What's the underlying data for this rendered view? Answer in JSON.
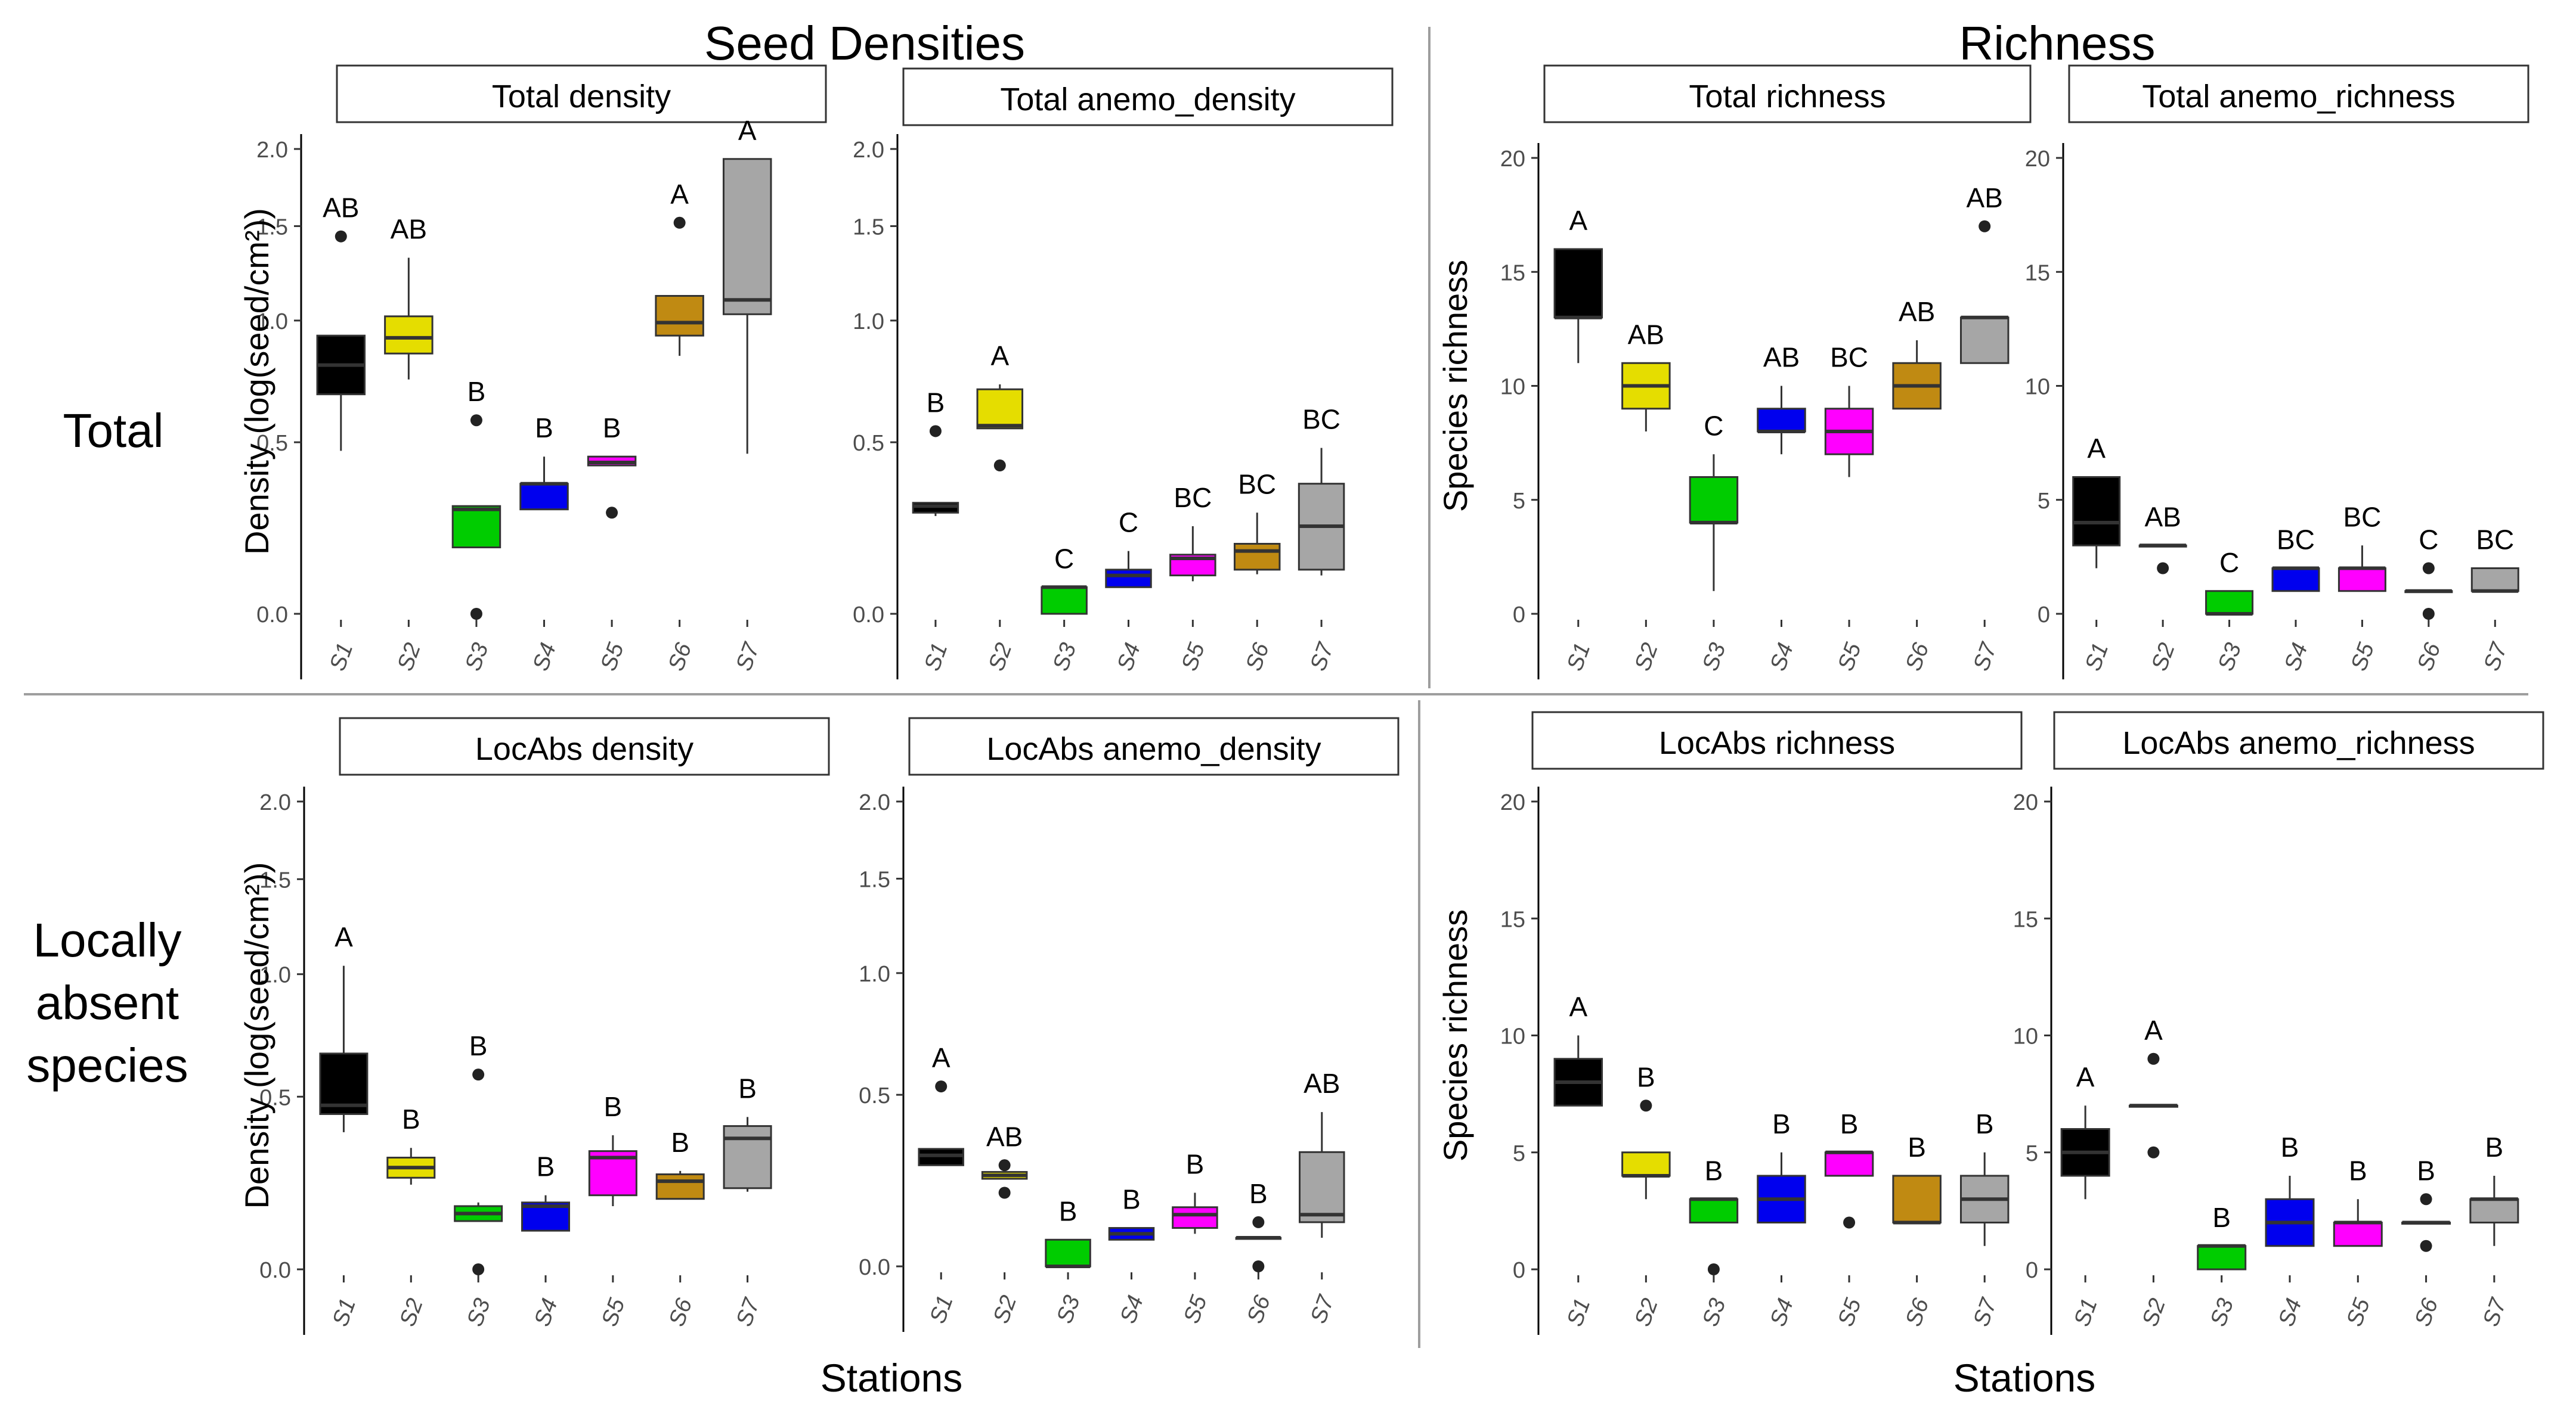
{
  "headers": {
    "col_left": "Seed Densities",
    "col_right": "Richness",
    "row_top": "Total",
    "row_bottom_l1": "Locally",
    "row_bottom_l2": "absent",
    "row_bottom_l3": "species",
    "x_label_left": "Stations",
    "x_label_right": "Stations"
  },
  "colors": {
    "S1": "#000000",
    "S2": "#e5dd00",
    "S3": "#00cc00",
    "S4": "#0000ee",
    "S5": "#ff00ff",
    "S6": "#c08a12",
    "S7": "#a6a6a6"
  },
  "chart_data": [
    {
      "type": "box",
      "title": "Total density",
      "ylabel": "Density (log(seed/cm²))",
      "xlabel": "Stations",
      "scale": "log1p",
      "yticks": [
        "0.0",
        "0.5",
        "1.0",
        "1.5",
        "2.0"
      ],
      "categories": [
        "S1",
        "S2",
        "S3",
        "S4",
        "S5",
        "S6",
        "S7"
      ],
      "boxes": [
        {
          "station": "S1",
          "min": 0.47,
          "q1": 0.68,
          "median": 0.8,
          "q3": 0.93,
          "max": 0.93,
          "outliers": [
            1.44
          ],
          "letter": "AB"
        },
        {
          "station": "S2",
          "min": 0.74,
          "q1": 0.85,
          "median": 0.92,
          "q3": 1.02,
          "max": 1.32,
          "outliers": [],
          "letter": "AB"
        },
        {
          "station": "S3",
          "min": 0.17,
          "q1": 0.17,
          "median": 0.28,
          "q3": 0.29,
          "max": 0.29,
          "outliers": [
            0.0,
            0.58
          ],
          "letter": "B"
        },
        {
          "station": "S4",
          "min": 0.28,
          "q1": 0.28,
          "median": 0.36,
          "q3": 0.36,
          "max": 0.45,
          "outliers": [],
          "letter": "B"
        },
        {
          "station": "S5",
          "min": 0.42,
          "q1": 0.42,
          "median": 0.43,
          "q3": 0.45,
          "max": 0.45,
          "outliers": [
            0.27
          ],
          "letter": "B"
        },
        {
          "station": "S6",
          "min": 0.84,
          "q1": 0.93,
          "median": 0.99,
          "q3": 1.12,
          "max": 1.12,
          "outliers": [
            1.52
          ],
          "letter": "A"
        },
        {
          "station": "S7",
          "min": 0.46,
          "q1": 1.03,
          "median": 1.1,
          "q3": 1.93,
          "max": 1.93,
          "outliers": [],
          "letter": "A"
        }
      ]
    },
    {
      "type": "box",
      "title": "Total anemo_density",
      "ylabel": "",
      "xlabel": "Stations",
      "scale": "log1p",
      "yticks": [
        "0.0",
        "0.5",
        "1.0",
        "1.5",
        "2.0"
      ],
      "categories": [
        "S1",
        "S2",
        "S3",
        "S4",
        "S5",
        "S6",
        "S7"
      ],
      "boxes": [
        {
          "station": "S1",
          "min": 0.26,
          "q1": 0.27,
          "median": 0.29,
          "q3": 0.3,
          "max": 0.3,
          "outliers": [
            0.54
          ],
          "letter": "B"
        },
        {
          "station": "S2",
          "min": 0.55,
          "q1": 0.55,
          "median": 0.56,
          "q3": 0.7,
          "max": 0.72,
          "outliers": [
            0.42
          ],
          "letter": "A"
        },
        {
          "station": "S3",
          "min": 0.0,
          "q1": 0.0,
          "median": 0.065,
          "q3": 0.065,
          "max": 0.065,
          "outliers": [],
          "letter": "C"
        },
        {
          "station": "S4",
          "min": 0.065,
          "q1": 0.065,
          "median": 0.095,
          "q3": 0.11,
          "max": 0.16,
          "outliers": [],
          "letter": "C"
        },
        {
          "station": "S5",
          "min": 0.08,
          "q1": 0.095,
          "median": 0.14,
          "q3": 0.15,
          "max": 0.23,
          "outliers": [],
          "letter": "BC"
        },
        {
          "station": "S6",
          "min": 0.098,
          "q1": 0.11,
          "median": 0.16,
          "q3": 0.18,
          "max": 0.27,
          "outliers": [],
          "letter": "BC"
        },
        {
          "station": "S7",
          "min": 0.095,
          "q1": 0.11,
          "median": 0.23,
          "q3": 0.36,
          "max": 0.48,
          "outliers": [],
          "letter": "BC"
        }
      ]
    },
    {
      "type": "box",
      "title": "Total richness",
      "ylabel": "Species richness",
      "xlabel": "Stations",
      "scale": "linear",
      "yticks": [
        "0",
        "5",
        "10",
        "15",
        "20"
      ],
      "categories": [
        "S1",
        "S2",
        "S3",
        "S4",
        "S5",
        "S6",
        "S7"
      ],
      "boxes": [
        {
          "station": "S1",
          "min": 11,
          "q1": 13,
          "median": 13,
          "q3": 16,
          "max": 16,
          "outliers": [],
          "letter": "A"
        },
        {
          "station": "S2",
          "min": 8,
          "q1": 9,
          "median": 10,
          "q3": 11,
          "max": 11,
          "outliers": [],
          "letter": "AB"
        },
        {
          "station": "S3",
          "min": 1,
          "q1": 4,
          "median": 4,
          "q3": 6,
          "max": 7,
          "outliers": [],
          "letter": "C"
        },
        {
          "station": "S4",
          "min": 7,
          "q1": 8,
          "median": 8,
          "q3": 9,
          "max": 10,
          "outliers": [],
          "letter": "AB"
        },
        {
          "station": "S5",
          "min": 6,
          "q1": 7,
          "median": 8,
          "q3": 9,
          "max": 10,
          "outliers": [],
          "letter": "BC"
        },
        {
          "station": "S6",
          "min": 9,
          "q1": 9,
          "median": 10,
          "q3": 11,
          "max": 12,
          "outliers": [],
          "letter": "AB"
        },
        {
          "station": "S7",
          "min": 11,
          "q1": 11,
          "median": 13,
          "q3": 13,
          "max": 13,
          "outliers": [
            17
          ],
          "letter": "AB"
        }
      ]
    },
    {
      "type": "box",
      "title": "Total anemo_richness",
      "ylabel": "",
      "xlabel": "Stations",
      "scale": "linear",
      "yticks": [
        "0",
        "5",
        "10",
        "15",
        "20"
      ],
      "categories": [
        "S1",
        "S2",
        "S3",
        "S4",
        "S5",
        "S6",
        "S7"
      ],
      "boxes": [
        {
          "station": "S1",
          "min": 2,
          "q1": 3,
          "median": 4,
          "q3": 6,
          "max": 6,
          "outliers": [],
          "letter": "A"
        },
        {
          "station": "S2",
          "min": 3,
          "q1": 3,
          "median": 3,
          "q3": 3,
          "max": 3,
          "outliers": [
            2
          ],
          "letter": "AB"
        },
        {
          "station": "S3",
          "min": 0,
          "q1": 0,
          "median": 0,
          "q3": 1,
          "max": 1,
          "outliers": [],
          "letter": "C"
        },
        {
          "station": "S4",
          "min": 1,
          "q1": 1,
          "median": 2,
          "q3": 2,
          "max": 2,
          "outliers": [],
          "letter": "BC"
        },
        {
          "station": "S5",
          "min": 1,
          "q1": 1,
          "median": 2,
          "q3": 2,
          "max": 3,
          "outliers": [],
          "letter": "BC"
        },
        {
          "station": "S6",
          "min": 1,
          "q1": 1,
          "median": 1,
          "q3": 1,
          "max": 1,
          "outliers": [
            0,
            2
          ],
          "letter": "C"
        },
        {
          "station": "S7",
          "min": 1,
          "q1": 1,
          "median": 1,
          "q3": 2,
          "max": 2,
          "outliers": [],
          "letter": "BC"
        }
      ]
    },
    {
      "type": "box",
      "title": "LocAbs density",
      "ylabel": "Density (log(seed/cm²))",
      "xlabel": "Stations",
      "scale": "log1p",
      "yticks": [
        "0.0",
        "0.5",
        "1.0",
        "1.5",
        "2.0"
      ],
      "categories": [
        "S1",
        "S2",
        "S3",
        "S4",
        "S5",
        "S6",
        "S7"
      ],
      "boxes": [
        {
          "station": "S1",
          "min": 0.38,
          "q1": 0.44,
          "median": 0.47,
          "q3": 0.66,
          "max": 1.04,
          "outliers": [],
          "letter": "A"
        },
        {
          "station": "S2",
          "min": 0.22,
          "q1": 0.24,
          "median": 0.27,
          "q3": 0.3,
          "max": 0.33,
          "outliers": [],
          "letter": "B"
        },
        {
          "station": "S3",
          "min": 0.12,
          "q1": 0.12,
          "median": 0.14,
          "q3": 0.16,
          "max": 0.17,
          "outliers": [
            0.0,
            0.58
          ],
          "letter": "B"
        },
        {
          "station": "S4",
          "min": 0.095,
          "q1": 0.095,
          "median": 0.16,
          "q3": 0.17,
          "max": 0.19,
          "outliers": [],
          "letter": "B"
        },
        {
          "station": "S5",
          "min": 0.16,
          "q1": 0.19,
          "median": 0.3,
          "q3": 0.32,
          "max": 0.37,
          "outliers": [],
          "letter": "B"
        },
        {
          "station": "S6",
          "min": 0.18,
          "q1": 0.18,
          "median": 0.23,
          "q3": 0.25,
          "max": 0.26,
          "outliers": [],
          "letter": "B"
        },
        {
          "station": "S7",
          "min": 0.2,
          "q1": 0.21,
          "median": 0.36,
          "q3": 0.4,
          "max": 0.43,
          "outliers": [],
          "letter": "B"
        }
      ]
    },
    {
      "type": "box",
      "title": "LocAbs anemo_density",
      "ylabel": "",
      "xlabel": "Stations",
      "scale": "log1p",
      "yticks": [
        "0.0",
        "0.5",
        "1.0",
        "1.5",
        "2.0"
      ],
      "categories": [
        "S1",
        "S2",
        "S3",
        "S4",
        "S5",
        "S6",
        "S7"
      ],
      "boxes": [
        {
          "station": "S1",
          "min": 0.27,
          "q1": 0.27,
          "median": 0.3,
          "q3": 0.32,
          "max": 0.32,
          "outliers": [
            0.53
          ],
          "letter": "A"
        },
        {
          "station": "S2",
          "min": 0.23,
          "q1": 0.23,
          "median": 0.24,
          "q3": 0.25,
          "max": 0.25,
          "outliers": [
            0.19,
            0.27
          ],
          "letter": "AB"
        },
        {
          "station": "S3",
          "min": 0.0,
          "q1": 0.0,
          "median": 0.0,
          "q3": 0.065,
          "max": 0.065,
          "outliers": [],
          "letter": "B"
        },
        {
          "station": "S4",
          "min": 0.065,
          "q1": 0.065,
          "median": 0.08,
          "q3": 0.095,
          "max": 0.095,
          "outliers": [],
          "letter": "B"
        },
        {
          "station": "S5",
          "min": 0.08,
          "q1": 0.095,
          "median": 0.13,
          "q3": 0.15,
          "max": 0.19,
          "outliers": [],
          "letter": "B"
        },
        {
          "station": "S6",
          "min": 0.07,
          "q1": 0.07,
          "median": 0.07,
          "q3": 0.07,
          "max": 0.07,
          "outliers": [
            0.0,
            0.11
          ],
          "letter": "B"
        },
        {
          "station": "S7",
          "min": 0.07,
          "q1": 0.11,
          "median": 0.13,
          "q3": 0.31,
          "max": 0.44,
          "outliers": [],
          "letter": "AB"
        }
      ]
    },
    {
      "type": "box",
      "title": "LocAbs richness",
      "ylabel": "Species richness",
      "xlabel": "Stations",
      "scale": "linear",
      "yticks": [
        "0",
        "5",
        "10",
        "15",
        "20"
      ],
      "categories": [
        "S1",
        "S2",
        "S3",
        "S4",
        "S5",
        "S6",
        "S7"
      ],
      "boxes": [
        {
          "station": "S1",
          "min": 7,
          "q1": 7,
          "median": 8,
          "q3": 9,
          "max": 10,
          "outliers": [],
          "letter": "A"
        },
        {
          "station": "S2",
          "min": 3,
          "q1": 4,
          "median": 4,
          "q3": 5,
          "max": 5,
          "outliers": [
            7
          ],
          "letter": "B"
        },
        {
          "station": "S3",
          "min": 2,
          "q1": 2,
          "median": 3,
          "q3": 3,
          "max": 3,
          "outliers": [
            0
          ],
          "letter": "B"
        },
        {
          "station": "S4",
          "min": 2,
          "q1": 2,
          "median": 3,
          "q3": 4,
          "max": 5,
          "outliers": [],
          "letter": "B"
        },
        {
          "station": "S5",
          "min": 4,
          "q1": 4,
          "median": 5,
          "q3": 5,
          "max": 5,
          "outliers": [
            2
          ],
          "letter": "B"
        },
        {
          "station": "S6",
          "min": 2,
          "q1": 2,
          "median": 2,
          "q3": 4,
          "max": 4,
          "outliers": [],
          "letter": "B"
        },
        {
          "station": "S7",
          "min": 1,
          "q1": 2,
          "median": 3,
          "q3": 4,
          "max": 5,
          "outliers": [],
          "letter": "B"
        }
      ]
    },
    {
      "type": "box",
      "title": "LocAbs anemo_richness",
      "ylabel": "",
      "xlabel": "Stations",
      "scale": "linear",
      "yticks": [
        "0",
        "5",
        "10",
        "15",
        "20"
      ],
      "categories": [
        "S1",
        "S2",
        "S3",
        "S4",
        "S5",
        "S6",
        "S7"
      ],
      "boxes": [
        {
          "station": "S1",
          "min": 3,
          "q1": 4,
          "median": 5,
          "q3": 6,
          "max": 7,
          "outliers": [],
          "letter": "A"
        },
        {
          "station": "S2",
          "min": 7,
          "q1": 7,
          "median": 7,
          "q3": 7,
          "max": 7,
          "outliers": [
            5,
            9
          ],
          "letter": "A"
        },
        {
          "station": "S3",
          "min": 0,
          "q1": 0,
          "median": 1,
          "q3": 1,
          "max": 1,
          "outliers": [],
          "letter": "B"
        },
        {
          "station": "S4",
          "min": 1,
          "q1": 1,
          "median": 2,
          "q3": 3,
          "max": 4,
          "outliers": [],
          "letter": "B"
        },
        {
          "station": "S5",
          "min": 1,
          "q1": 1,
          "median": 2,
          "q3": 2,
          "max": 3,
          "outliers": [],
          "letter": "B"
        },
        {
          "station": "S6",
          "min": 2,
          "q1": 2,
          "median": 2,
          "q3": 2,
          "max": 2,
          "outliers": [
            1,
            3
          ],
          "letter": "B"
        },
        {
          "station": "S7",
          "min": 1,
          "q1": 2,
          "median": 3,
          "q3": 3,
          "max": 4,
          "outliers": [],
          "letter": "B"
        }
      ]
    }
  ]
}
